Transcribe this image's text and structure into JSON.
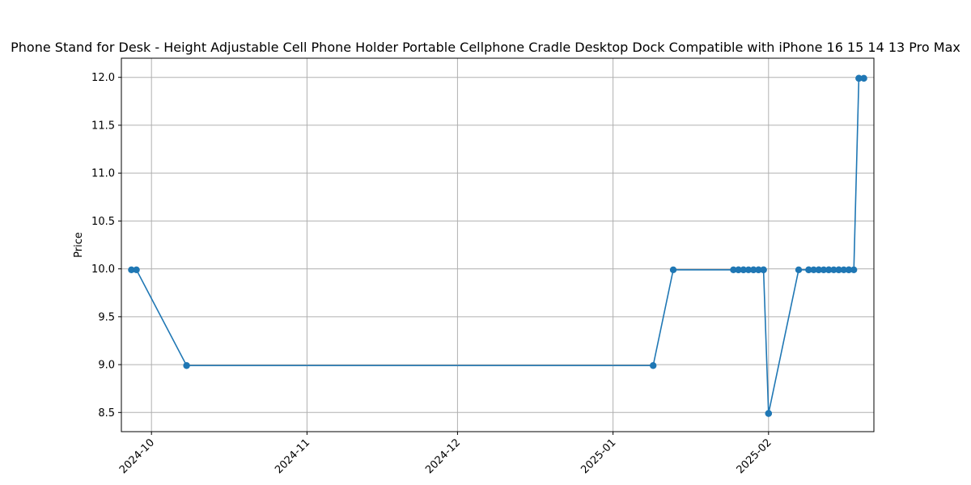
{
  "chart_data": {
    "type": "line",
    "title": "Phone Stand for Desk - Height Adjustable Cell Phone Holder Portable Cellphone Cradle Desktop Dock Compatible with iPhone 16 15 14 13 Pro Max",
    "xlabel": "",
    "ylabel": "Price",
    "ylim": [
      8.3,
      12.2
    ],
    "yticks": [
      8.5,
      9.0,
      9.5,
      10.0,
      10.5,
      11.0,
      11.5,
      12.0
    ],
    "ytick_labels": [
      "8.5",
      "9.0",
      "9.5",
      "10.0",
      "10.5",
      "11.0",
      "11.5",
      "12.0"
    ],
    "xlim": [
      "2024-09-25",
      "2025-02-22"
    ],
    "xticks": [
      "2024-10-01",
      "2024-11-01",
      "2024-12-01",
      "2025-01-01",
      "2025-02-01"
    ],
    "xtick_labels": [
      "2024-10",
      "2024-11",
      "2024-12",
      "2025-01",
      "2025-02"
    ],
    "grid": true,
    "color": "#1f77b4",
    "x": [
      "2024-09-27",
      "2024-09-28",
      "2024-10-08",
      "2025-01-09",
      "2025-01-13",
      "2025-01-25",
      "2025-01-26",
      "2025-01-26",
      "2025-01-27",
      "2025-01-27",
      "2025-01-28",
      "2025-01-29",
      "2025-01-29",
      "2025-01-30",
      "2025-01-30",
      "2025-01-31",
      "2025-01-31",
      "2025-02-01",
      "2025-02-01",
      "2025-02-07",
      "2025-02-09",
      "2025-02-09",
      "2025-02-10",
      "2025-02-11",
      "2025-02-11",
      "2025-02-12",
      "2025-02-13",
      "2025-02-13",
      "2025-02-14",
      "2025-02-15",
      "2025-02-15",
      "2025-02-16",
      "2025-02-17",
      "2025-02-17",
      "2025-02-18",
      "2025-02-19",
      "2025-02-19",
      "2025-02-20"
    ],
    "y": [
      9.99,
      9.99,
      8.99,
      8.99,
      9.99,
      9.99,
      9.99,
      9.99,
      9.99,
      9.99,
      9.99,
      9.99,
      9.99,
      9.99,
      9.99,
      9.99,
      9.99,
      8.49,
      8.49,
      9.99,
      9.99,
      9.99,
      9.99,
      9.99,
      9.99,
      9.99,
      9.99,
      9.99,
      9.99,
      9.99,
      9.99,
      9.99,
      9.99,
      9.99,
      9.99,
      11.99,
      11.99,
      11.99
    ]
  }
}
